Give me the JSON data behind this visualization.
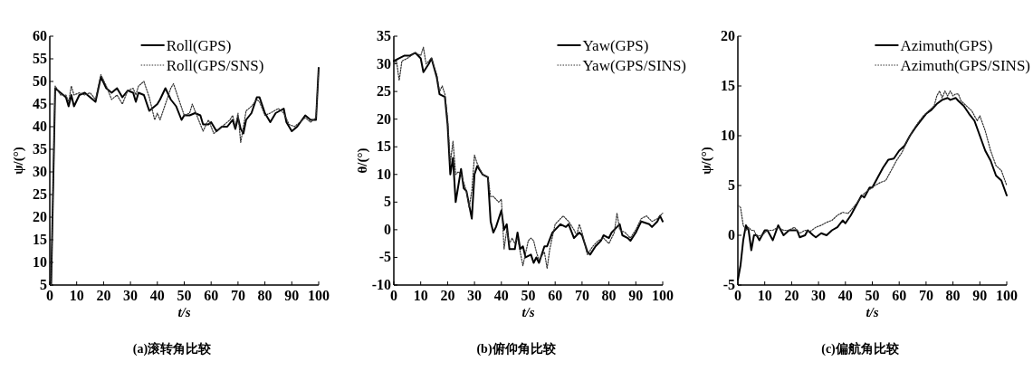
{
  "chart_data": [
    {
      "type": "line",
      "title": "(a)滚转角比较",
      "xlabel": "t/s",
      "ylabel": "ψ/(°)",
      "xlim": [
        0,
        100
      ],
      "ylim": [
        5,
        60
      ],
      "xticks": [
        0,
        10,
        20,
        30,
        40,
        50,
        60,
        70,
        80,
        90,
        100
      ],
      "yticks": [
        5,
        10,
        15,
        20,
        25,
        30,
        35,
        40,
        45,
        50,
        55,
        60
      ],
      "legend": "top",
      "series": [
        {
          "name": "Roll(GPS)",
          "color": "#000000",
          "line_style": "solid",
          "x": [
            0.5,
            2,
            4,
            6,
            7,
            8,
            9,
            11,
            13,
            15,
            17,
            19,
            21,
            23,
            25,
            27,
            29,
            31,
            32,
            33,
            35,
            37,
            40,
            41,
            43,
            45,
            47,
            49,
            50,
            52,
            54,
            56,
            57,
            59,
            60,
            62,
            64,
            66,
            68,
            69,
            70,
            71,
            72,
            73,
            75,
            77,
            78,
            80,
            82,
            84,
            87,
            88,
            90,
            92,
            95,
            97,
            99,
            100
          ],
          "values": [
            5,
            48.5,
            47.5,
            46.5,
            44.5,
            47,
            44.5,
            47,
            47.5,
            46.5,
            45.5,
            51,
            48.5,
            47.5,
            48.5,
            46.5,
            48,
            47.5,
            45.5,
            47.5,
            47,
            43.5,
            45,
            46,
            48.5,
            46,
            44.5,
            41.5,
            42.5,
            42.5,
            43,
            42.5,
            40.5,
            40.5,
            41,
            39,
            40,
            40,
            41.5,
            39.5,
            42,
            39.5,
            38.5,
            41.5,
            43,
            46.5,
            46.5,
            43,
            41,
            43,
            44,
            41,
            39,
            40,
            42.5,
            41.5,
            41.5,
            53
          ]
        },
        {
          "name": "Roll(GPS/SNS)",
          "color": "#333333",
          "line_style": "dotted",
          "x": [
            0.5,
            2,
            4,
            6,
            7,
            8,
            9,
            11,
            13,
            15,
            17,
            19,
            21,
            23,
            25,
            27,
            29,
            31,
            32,
            33,
            35,
            37,
            39,
            40,
            41,
            43,
            45,
            46,
            48,
            50,
            52,
            53,
            55,
            57,
            59,
            61,
            63,
            65,
            67,
            68,
            69,
            70,
            71,
            72,
            73,
            75,
            77,
            78,
            80,
            82,
            85,
            87,
            89,
            91,
            93,
            95,
            97,
            99,
            100
          ],
          "values": [
            5,
            49,
            47,
            47,
            45.5,
            49,
            47,
            47.5,
            47,
            47.5,
            46,
            51.5,
            49,
            46,
            47,
            45,
            48,
            48.5,
            47,
            49,
            50,
            46.5,
            41.5,
            43,
            41.5,
            45,
            48.5,
            49.5,
            46,
            42.5,
            43,
            45,
            42,
            39,
            41.5,
            38.5,
            39.5,
            40.5,
            41.5,
            42.5,
            40,
            43,
            36.5,
            40,
            43.5,
            44.5,
            46,
            45.5,
            42.5,
            43,
            44,
            43,
            40.5,
            40,
            41,
            42,
            41,
            42,
            53
          ]
        }
      ]
    },
    {
      "type": "line",
      "title": "(b)俯仰角比较",
      "xlabel": "t/s",
      "ylabel": "θ/(°)",
      "xlim": [
        0,
        100
      ],
      "ylim": [
        -10,
        35
      ],
      "xticks": [
        0,
        10,
        20,
        30,
        40,
        50,
        60,
        70,
        80,
        90,
        100
      ],
      "yticks": [
        -10,
        -5,
        0,
        5,
        10,
        15,
        20,
        25,
        30,
        35
      ],
      "legend": "top right",
      "series": [
        {
          "name": "Yaw(GPS)",
          "color": "#000000",
          "line_style": "solid",
          "x": [
            0,
            2,
            4,
            6,
            8,
            10,
            11,
            13,
            14,
            16,
            17,
            19,
            20,
            21,
            22,
            23,
            25,
            26,
            27,
            29,
            30,
            31,
            33,
            35,
            36,
            37,
            38,
            40,
            41,
            42,
            43,
            45,
            46,
            47,
            48,
            49,
            51,
            52,
            53,
            54,
            56,
            57,
            59,
            60,
            62,
            64,
            65,
            67,
            69,
            70,
            72,
            73,
            75,
            77,
            78,
            80,
            81,
            83,
            84,
            85,
            87,
            88,
            90,
            92,
            95,
            96,
            98,
            99,
            100
          ],
          "values": [
            30.5,
            31,
            31.5,
            31.5,
            32,
            31,
            28.5,
            30,
            31,
            27.5,
            24.5,
            24,
            19,
            10,
            13,
            5,
            11,
            7.5,
            7,
            2,
            10,
            11.5,
            10,
            9.5,
            1.5,
            -0.5,
            0.5,
            3.5,
            0,
            1,
            -3.5,
            -3.5,
            -0.5,
            -3.5,
            -3,
            -5,
            -4.5,
            -6,
            -5,
            -6,
            -3,
            -3,
            -0.5,
            0,
            1,
            0.5,
            1,
            -1.5,
            -0.5,
            -1,
            -4,
            -4.5,
            -3,
            -2,
            -1,
            -1.5,
            -0.5,
            0.5,
            1,
            -1,
            -1.5,
            -2,
            -0.5,
            1.5,
            1,
            0.5,
            1.5,
            2.5,
            1.5
          ]
        },
        {
          "name": "Yaw(GPS/SINS)",
          "color": "#333333",
          "line_style": "dotted",
          "x": [
            0,
            1,
            2,
            3,
            5,
            8,
            10,
            11,
            12,
            13,
            14,
            16,
            17,
            18,
            19,
            20,
            21,
            22,
            23,
            24,
            25,
            26,
            27,
            28,
            29,
            30,
            31,
            33,
            35,
            36,
            37,
            39,
            40,
            41,
            42,
            43,
            44,
            45,
            46,
            47,
            48,
            50,
            51,
            52,
            53,
            54,
            56,
            57,
            58,
            60,
            61,
            63,
            65,
            67,
            68,
            69,
            70,
            72,
            74,
            76,
            78,
            80,
            82,
            83,
            84,
            86,
            88,
            90,
            92,
            94,
            96,
            98,
            100
          ],
          "values": [
            30,
            30.5,
            27,
            30.5,
            31,
            32,
            31.5,
            33,
            30,
            30.5,
            31,
            28,
            25,
            26,
            24.5,
            20,
            12,
            16,
            10,
            10.5,
            10,
            8.5,
            7,
            4,
            7,
            13.5,
            12,
            10,
            9.5,
            6,
            6,
            5,
            5.5,
            -3.5,
            0,
            -2.5,
            -1.5,
            -2.5,
            -1.5,
            -4,
            -6.5,
            -2,
            -1.5,
            -2,
            -4,
            -5.5,
            -4,
            -7,
            -3.5,
            1,
            1.5,
            2.5,
            1.5,
            0,
            -1,
            1,
            -0.5,
            -4.5,
            -3,
            -2,
            -1.5,
            -2.5,
            -0.5,
            3,
            0,
            -0.5,
            -1.5,
            0,
            2,
            2.5,
            1.5,
            2,
            3
          ]
        }
      ]
    },
    {
      "type": "line",
      "title": "(c)偏航角比较",
      "xlabel": "t/s",
      "ylabel": "ψ/(°)",
      "xlim": [
        0,
        100
      ],
      "ylim": [
        -5,
        20
      ],
      "xticks": [
        0,
        10,
        20,
        30,
        40,
        50,
        60,
        70,
        80,
        90,
        100
      ],
      "yticks": [
        -5,
        0,
        5,
        10,
        15,
        20
      ],
      "legend": "top right",
      "series": [
        {
          "name": "Azimuth(GPS)",
          "color": "#000000",
          "line_style": "solid",
          "x": [
            0,
            1,
            2,
            3,
            4,
            5,
            6,
            7,
            8,
            9,
            10,
            11,
            12,
            13,
            15,
            16,
            17,
            19,
            20,
            21,
            22,
            23,
            25,
            26,
            28,
            29,
            31,
            33,
            35,
            37,
            39,
            40,
            42,
            44,
            46,
            47,
            49,
            50,
            52,
            54,
            56,
            58,
            60,
            62,
            64,
            66,
            68,
            70,
            72,
            74,
            76,
            78,
            79,
            81,
            82,
            84,
            86,
            88,
            90,
            92,
            94,
            96,
            98,
            100
          ],
          "values": [
            -4.5,
            -3,
            -0.5,
            1,
            0.5,
            -1.5,
            0,
            0,
            -0.5,
            0,
            0.5,
            0.5,
            0,
            -0.5,
            1,
            0.5,
            0,
            0.5,
            0.5,
            0.5,
            0.5,
            -0.2,
            0,
            0.5,
            0,
            -0.2,
            0.2,
            0,
            0.5,
            0.8,
            1.5,
            1.2,
            2,
            3,
            4,
            3.8,
            4.8,
            4.8,
            5.8,
            6.8,
            7.6,
            7.7,
            8.5,
            9,
            10,
            10.8,
            11.5,
            12.2,
            12.6,
            13.2,
            13.6,
            13.8,
            13.6,
            13.8,
            13.5,
            13,
            12.2,
            11.5,
            10,
            8.5,
            7.5,
            6,
            5.5,
            4
          ]
        },
        {
          "name": "Azimuth(GPS/SINS)",
          "color": "#333333",
          "line_style": "dotted",
          "x": [
            0,
            1,
            2,
            3,
            4,
            5,
            6,
            7,
            9,
            11,
            13,
            15,
            17,
            19,
            21,
            23,
            25,
            27,
            29,
            31,
            33,
            35,
            37,
            39,
            41,
            43,
            45,
            47,
            49,
            51,
            53,
            55,
            57,
            59,
            61,
            63,
            65,
            67,
            69,
            71,
            73,
            74,
            75,
            76,
            77,
            78,
            79,
            80,
            81,
            82,
            83,
            85,
            87,
            89,
            90,
            92,
            94,
            96,
            98,
            100
          ],
          "values": [
            3,
            2.8,
            1,
            0.5,
            0.8,
            0.5,
            0.5,
            -0.1,
            0,
            0.5,
            0.5,
            0.8,
            0.5,
            0.5,
            0.8,
            0.2,
            0.5,
            0.4,
            0.8,
            1,
            1.3,
            1.5,
            2,
            2.3,
            2.2,
            2.8,
            3.5,
            4.2,
            4.6,
            5,
            5.3,
            5.5,
            6.5,
            7.5,
            8.3,
            9.5,
            10.5,
            11.3,
            12,
            12.5,
            13,
            14,
            14.5,
            13.8,
            14.5,
            14,
            14.5,
            14,
            14.2,
            14.2,
            13.5,
            13,
            12.5,
            11.5,
            12,
            10.5,
            8.5,
            7,
            6.5,
            5
          ]
        }
      ]
    }
  ]
}
